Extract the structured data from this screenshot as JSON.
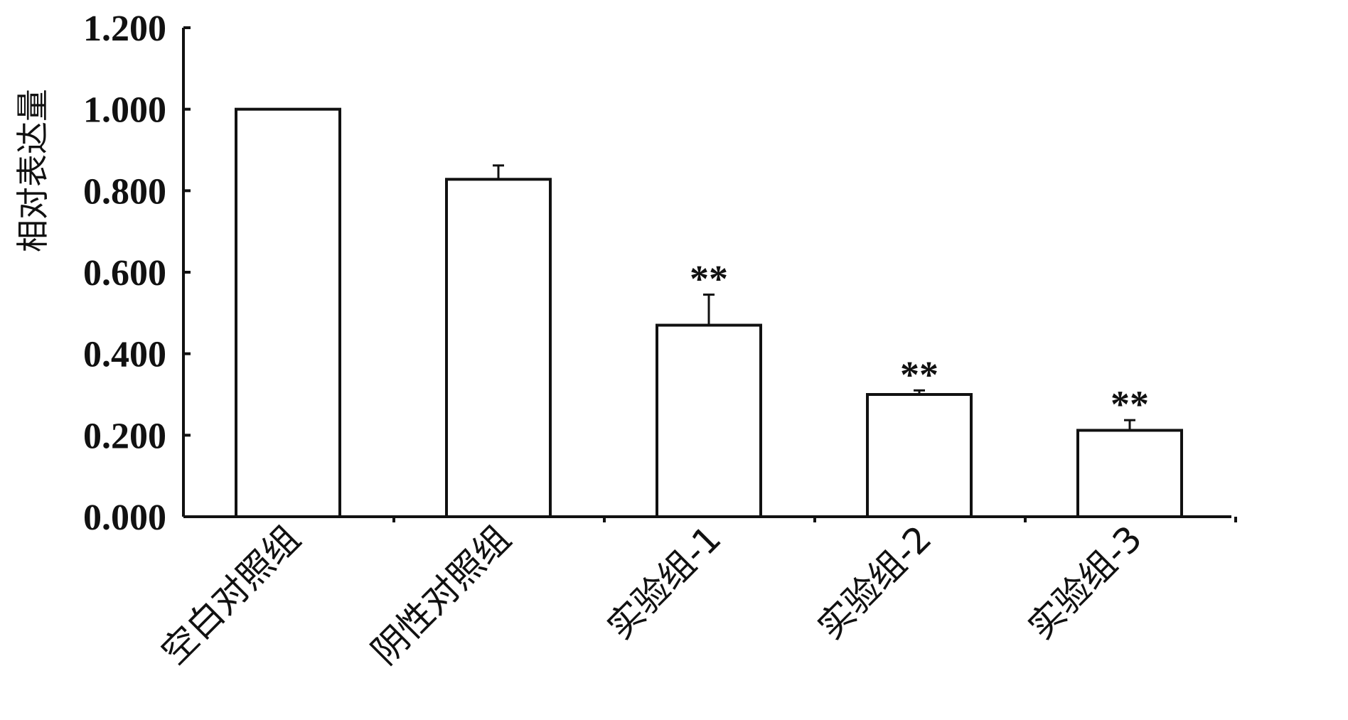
{
  "chart_data": {
    "type": "bar",
    "title": "",
    "xlabel": "",
    "ylabel": "相对表达量",
    "ylim": [
      0,
      1.2
    ],
    "yticks": [
      "0.000",
      "0.200",
      "0.400",
      "0.600",
      "0.800",
      "1.000",
      "1.200"
    ],
    "ytick_values": [
      0,
      0.2,
      0.4,
      0.6,
      0.8,
      1.0,
      1.2
    ],
    "categories": [
      "空白对照组",
      "阴性对照组",
      "实验组-1",
      "实验组-2",
      "实验组-3"
    ],
    "values": [
      1.0,
      0.828,
      0.47,
      0.3,
      0.212
    ],
    "errors": [
      0.0,
      0.034,
      0.075,
      0.01,
      0.025
    ],
    "annotations": [
      "",
      "",
      "**",
      "**",
      "**"
    ],
    "grid": false,
    "legend": "none",
    "colors": {
      "bar_fill": "#ffffff",
      "bar_stroke": "#111111",
      "text": "#111111"
    }
  }
}
